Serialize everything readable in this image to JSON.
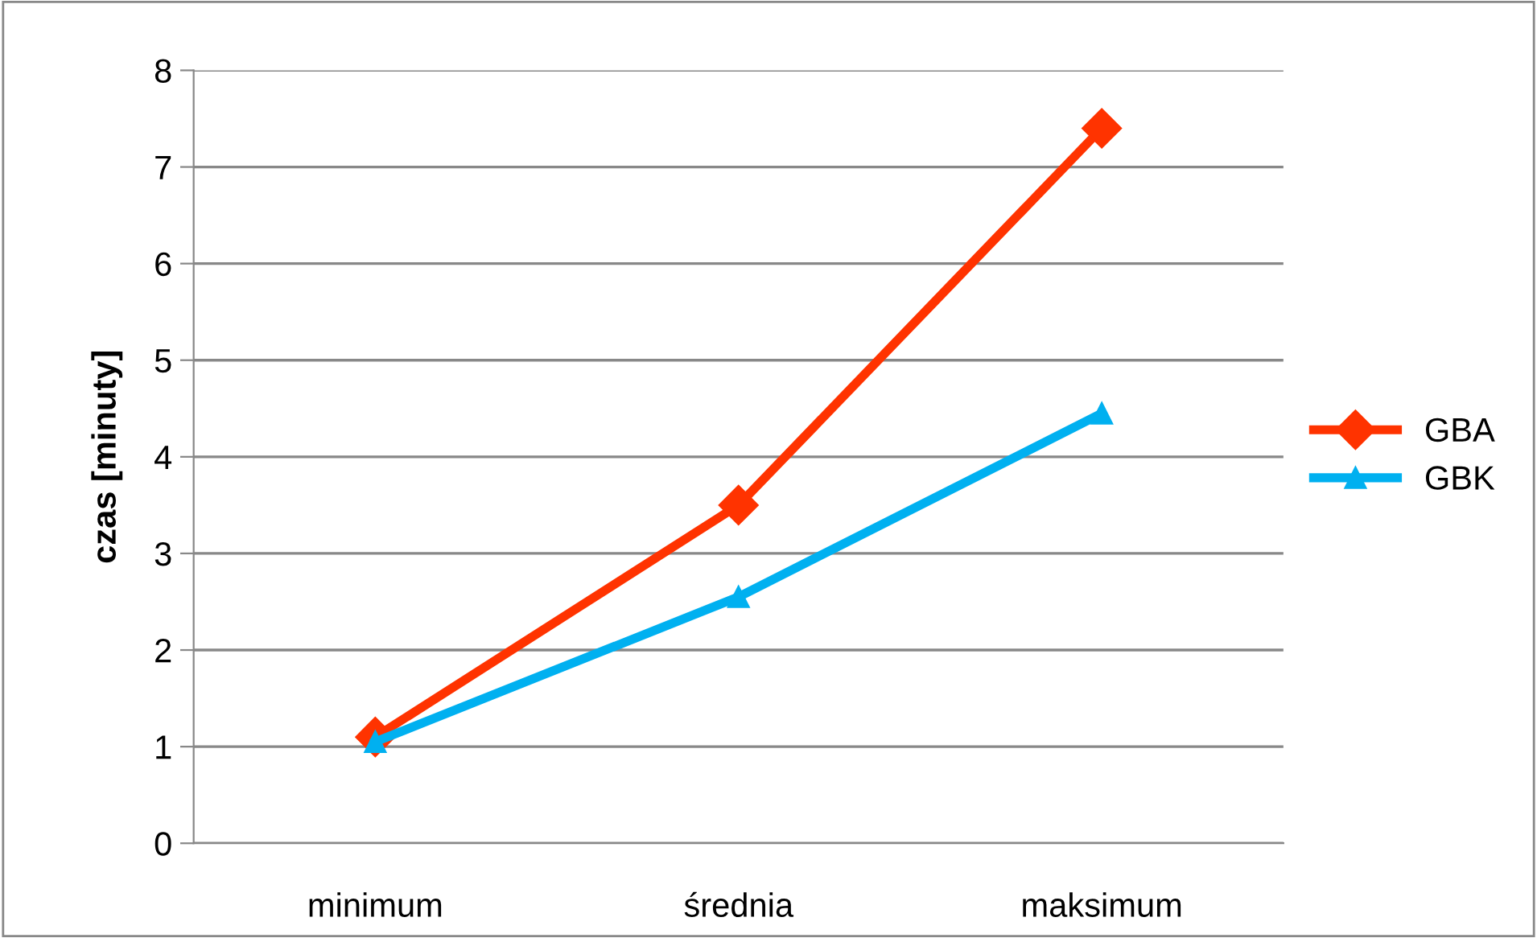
{
  "chart_data": {
    "type": "line",
    "ylabel": "czas [minuty]",
    "categories": [
      "minimum",
      "średnia",
      "maksimum"
    ],
    "series": [
      {
        "name": "GBA",
        "color": "#ff3300",
        "marker": "diamond",
        "values": [
          1.1,
          3.5,
          7.4
        ]
      },
      {
        "name": "GBK",
        "color": "#00b0f0",
        "marker": "triangle",
        "values": [
          1.05,
          2.55,
          4.45
        ]
      }
    ],
    "ylim": [
      0,
      8
    ],
    "yticks": [
      0,
      1,
      2,
      3,
      4,
      5,
      6,
      7,
      8
    ],
    "grid": "y",
    "legend": "right",
    "line_style": "solid"
  }
}
